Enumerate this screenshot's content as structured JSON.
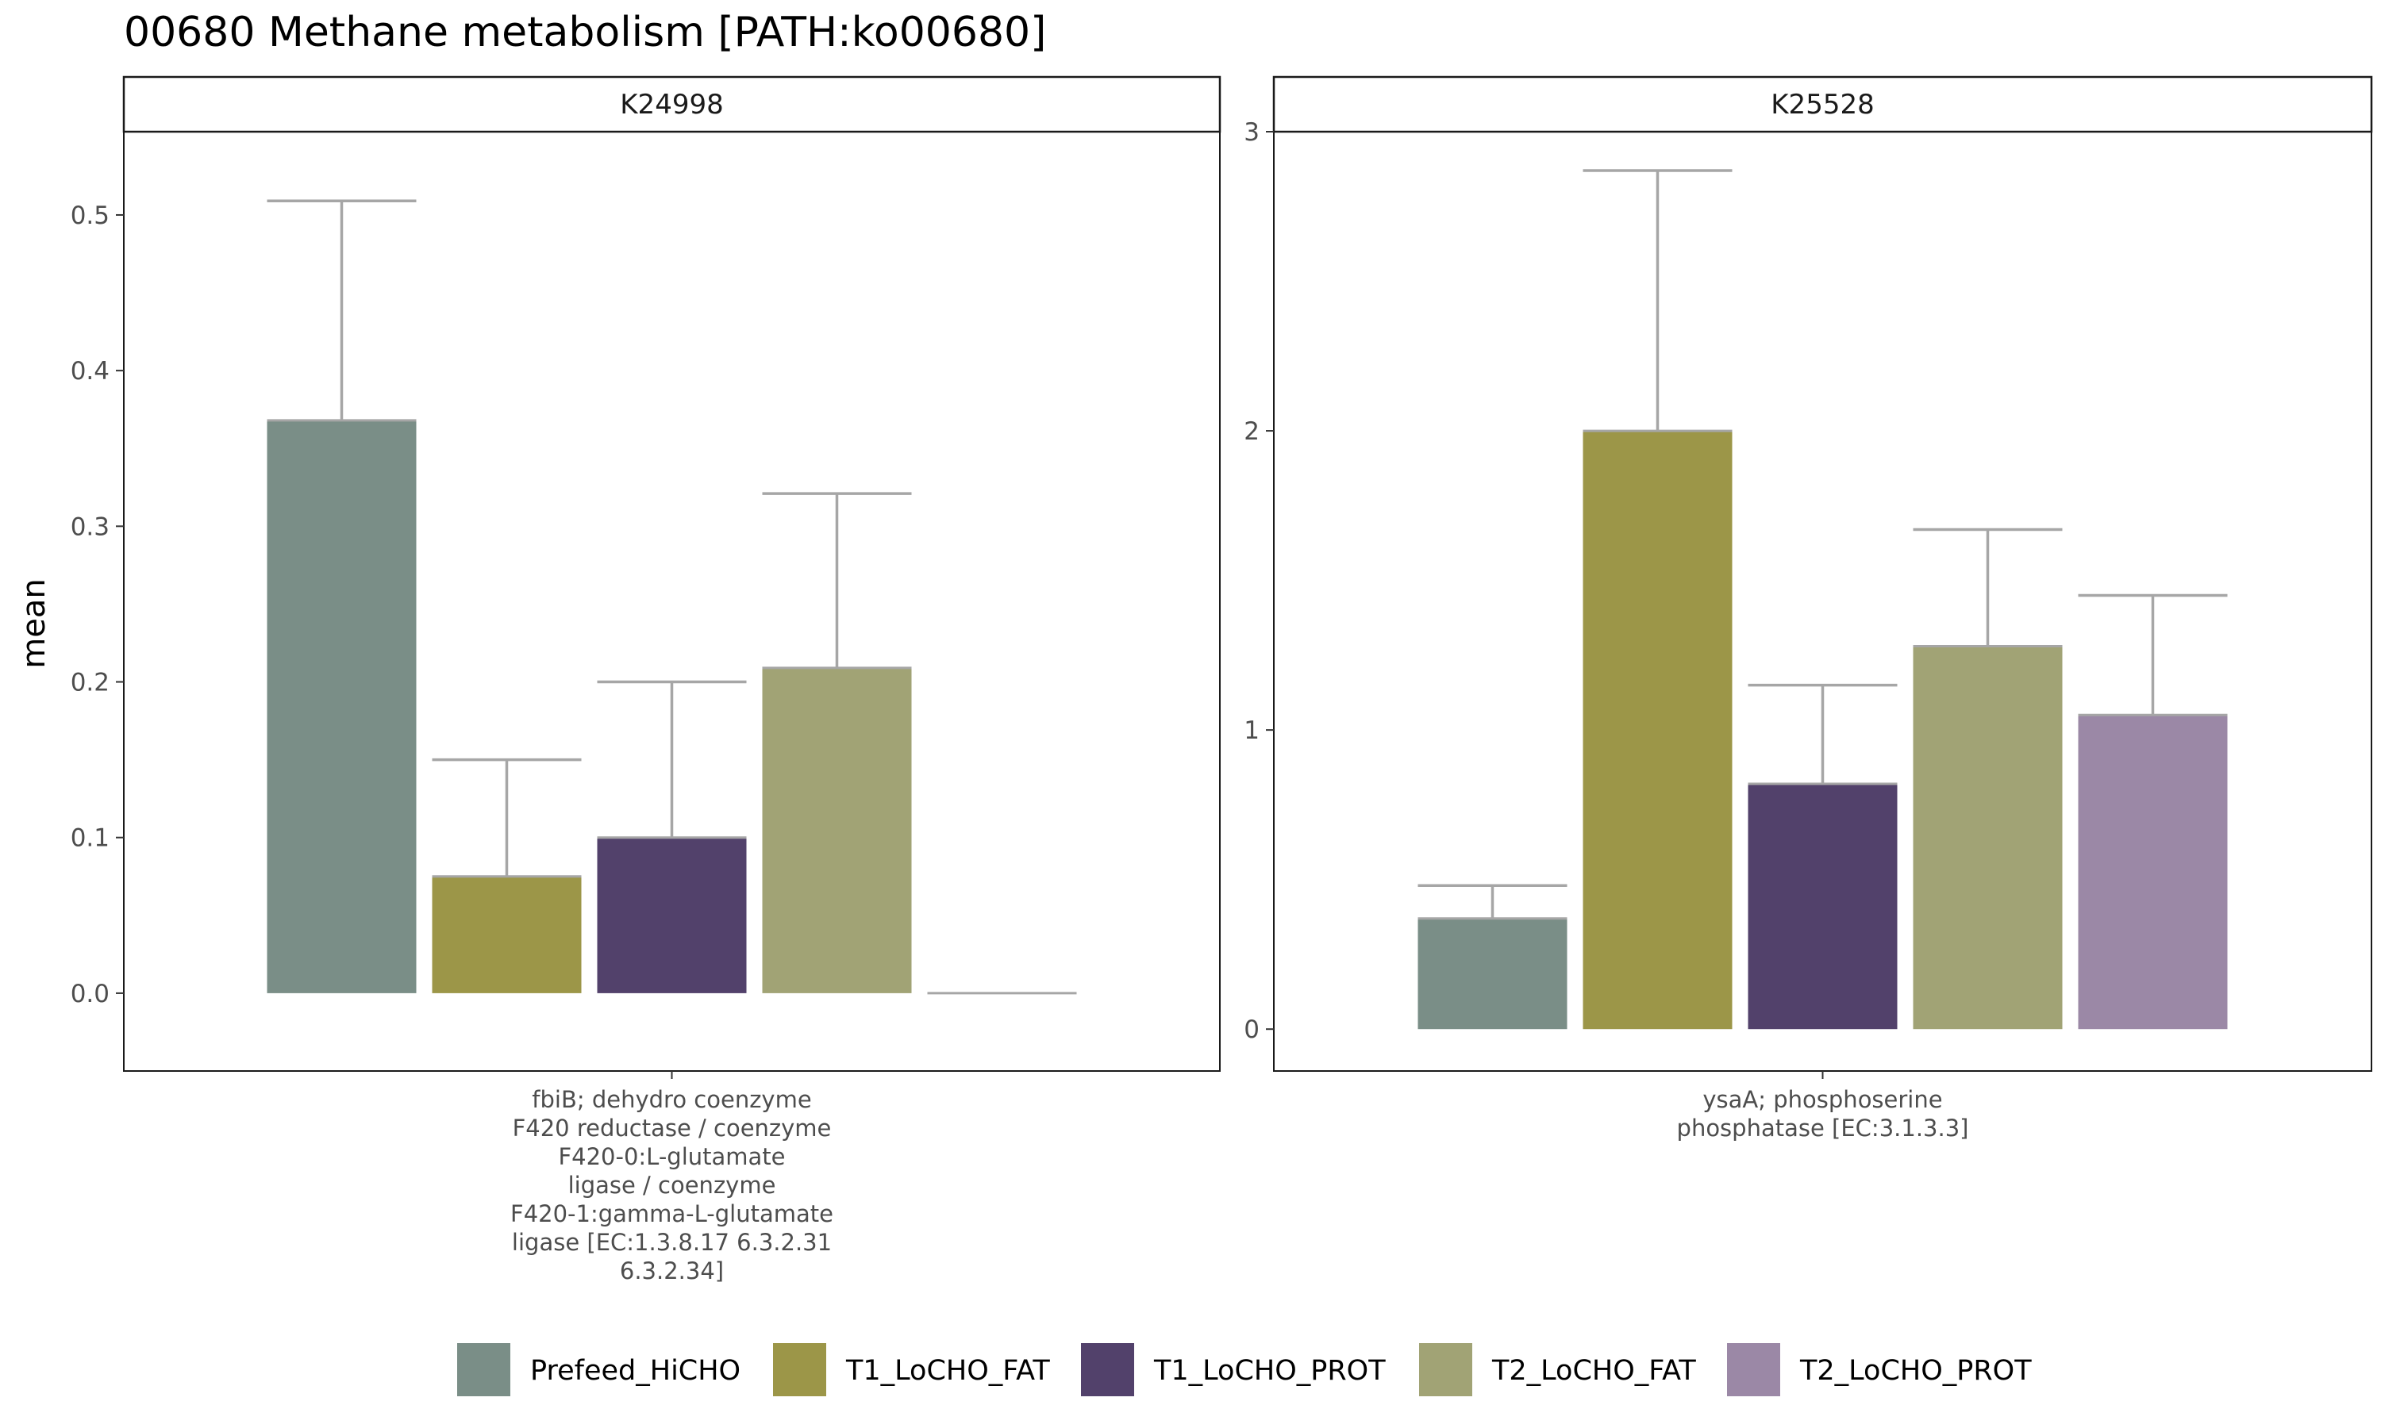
{
  "title": "00680 Methane metabolism [PATH:ko00680]",
  "legend": {
    "position": "bottom",
    "items": [
      {
        "name": "Prefeed_HiCHO",
        "color": "#7a8e87"
      },
      {
        "name": "T1_LoCHO_FAT",
        "color": "#9c9648"
      },
      {
        "name": "T1_LoCHO_PROT",
        "color": "#52416b"
      },
      {
        "name": "T2_LoCHO_FAT",
        "color": "#a1a375"
      },
      {
        "name": "T2_LoCHO_PROT",
        "color": "#9b88a6"
      }
    ]
  },
  "chart_data": [
    {
      "type": "bar",
      "facet": "K24998",
      "title": "00680 Methane metabolism [PATH:ko00680]",
      "ylabel": "mean",
      "xlabel": "",
      "category_label": [
        "fbiB; dehydro coenzyme",
        "F420 reductase / coenzyme",
        "F420-0:L-glutamate",
        "ligase / coenzyme",
        "F420-1:gamma-L-glutamate",
        "ligase [EC:1.3.8.17 6.3.2.31",
        "6.3.2.34]"
      ],
      "ylim": [
        -0.05,
        0.5535
      ],
      "yticks": [
        0.0,
        0.1,
        0.2,
        0.3,
        0.4,
        0.5
      ],
      "ytick_labels": [
        "0.0",
        "0.1",
        "0.2",
        "0.3",
        "0.4",
        "0.5"
      ],
      "grid": false,
      "series": [
        {
          "name": "Prefeed_HiCHO",
          "values": [
            0.368
          ],
          "error_upper": [
            0.509
          ]
        },
        {
          "name": "T1_LoCHO_FAT",
          "values": [
            0.075
          ],
          "error_upper": [
            0.15
          ]
        },
        {
          "name": "T1_LoCHO_PROT",
          "values": [
            0.1
          ],
          "error_upper": [
            0.2
          ]
        },
        {
          "name": "T2_LoCHO_FAT",
          "values": [
            0.209
          ],
          "error_upper": [
            0.321
          ]
        },
        {
          "name": "T2_LoCHO_PROT",
          "values": [
            0.0
          ],
          "error_upper": [
            0.0
          ]
        }
      ]
    },
    {
      "type": "bar",
      "facet": "K25528",
      "ylabel": "mean",
      "xlabel": "",
      "category_label": [
        "ysaA; phosphoserine",
        "phosphatase [EC:3.1.3.3]"
      ],
      "ylim": [
        -0.14,
        3.0
      ],
      "yticks": [
        0,
        1,
        2,
        3
      ],
      "ytick_labels": [
        "0",
        "1",
        "2",
        "3"
      ],
      "grid": false,
      "series": [
        {
          "name": "Prefeed_HiCHO",
          "values": [
            0.37
          ],
          "error_upper": [
            0.48
          ]
        },
        {
          "name": "T1_LoCHO_FAT",
          "values": [
            2.0
          ],
          "error_upper": [
            2.87
          ]
        },
        {
          "name": "T1_LoCHO_PROT",
          "values": [
            0.82
          ],
          "error_upper": [
            1.15
          ]
        },
        {
          "name": "T2_LoCHO_FAT",
          "values": [
            1.28
          ],
          "error_upper": [
            1.67
          ]
        },
        {
          "name": "T2_LoCHO_PROT",
          "values": [
            1.05
          ],
          "error_upper": [
            1.45
          ]
        }
      ]
    }
  ]
}
